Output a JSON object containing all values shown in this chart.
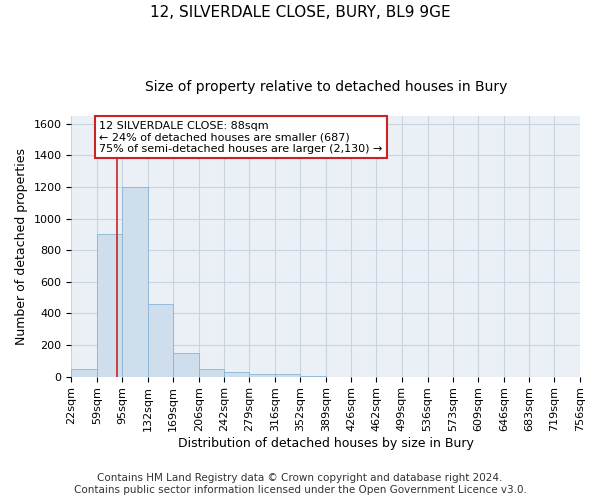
{
  "title": "12, SILVERDALE CLOSE, BURY, BL9 9GE",
  "subtitle": "Size of property relative to detached houses in Bury",
  "xlabel": "Distribution of detached houses by size in Bury",
  "ylabel": "Number of detached properties",
  "bar_color": "#cfdeed",
  "bar_edge_color": "#8ab4d4",
  "grid_color": "#c8d4e0",
  "background_color": "#eaf0f6",
  "annotation_box_color": "#cc2222",
  "annotation_text_line1": "12 SILVERDALE CLOSE: 88sqm",
  "annotation_text_line2": "← 24% of detached houses are smaller (687)",
  "annotation_text_line3": "75% of semi-detached houses are larger (2,130) →",
  "property_line_x": 88,
  "bin_edges": [
    22,
    59,
    95,
    132,
    169,
    206,
    242,
    279,
    316,
    352,
    389,
    426,
    462,
    499,
    536,
    573,
    609,
    646,
    683,
    719,
    756
  ],
  "bar_heights": [
    50,
    900,
    1200,
    460,
    150,
    50,
    30,
    15,
    15,
    5,
    0,
    0,
    0,
    0,
    0,
    0,
    0,
    0,
    0,
    0
  ],
  "ylim": [
    0,
    1650
  ],
  "yticks": [
    0,
    200,
    400,
    600,
    800,
    1000,
    1200,
    1400,
    1600
  ],
  "footnote_line1": "Contains HM Land Registry data © Crown copyright and database right 2024.",
  "footnote_line2": "Contains public sector information licensed under the Open Government Licence v3.0.",
  "title_fontsize": 11,
  "subtitle_fontsize": 10,
  "xlabel_fontsize": 9,
  "ylabel_fontsize": 9,
  "tick_fontsize": 8,
  "annotation_fontsize": 8,
  "footnote_fontsize": 7.5
}
